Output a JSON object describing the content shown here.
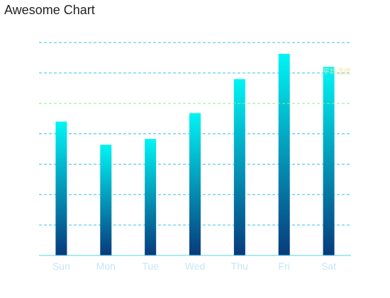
{
  "chart_data": {
    "type": "bar",
    "title": "Awesome Chart",
    "categories": [
      "Sun",
      "Mon",
      "Tue",
      "Wed",
      "Thu",
      "Fri",
      "Sat"
    ],
    "series": [
      {
        "values": [
          44,
          36.4,
          38.3,
          46.8,
          58,
          66.3,
          62
        ]
      }
    ],
    "ylim": [
      0,
      70
    ],
    "ytick_step": 10,
    "grid": true,
    "reference_line": {
      "value": 50,
      "label": "平均温度",
      "color": "#90ee90"
    },
    "colors": {
      "bar_top": "#00f5f5",
      "bar_bottom": "#083a7c",
      "grid": "#34c3e5",
      "axis": "#55d6e0"
    }
  }
}
